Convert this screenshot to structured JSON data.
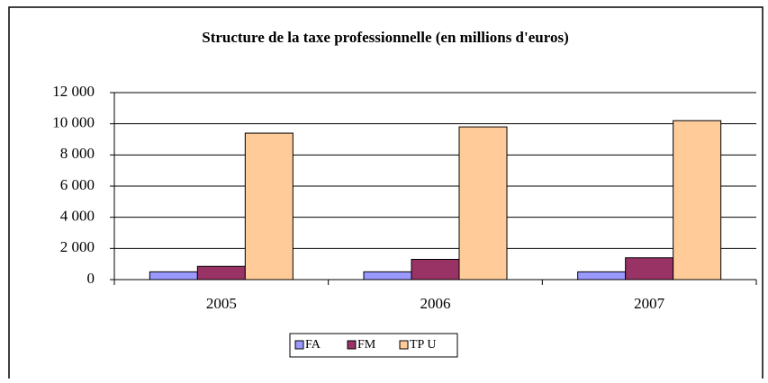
{
  "chart_data": {
    "type": "bar",
    "title": "Structure de la taxe professionnelle (en millions d'euros)",
    "categories": [
      "2005",
      "2006",
      "2007"
    ],
    "series": [
      {
        "name": "FA",
        "color": "#9999ff",
        "values": [
          500,
          500,
          500
        ]
      },
      {
        "name": "FM",
        "color": "#993366",
        "values": [
          850,
          1300,
          1400
        ]
      },
      {
        "name": "TP U",
        "color": "#ffcc99",
        "values": [
          9400,
          9800,
          10200
        ]
      }
    ],
    "ylim": [
      0,
      12000
    ],
    "yticks": [
      0,
      {
        "value": 2000,
        "label": "2 000"
      },
      {
        "value": 4000,
        "label": "4 000"
      },
      {
        "value": 6000,
        "label": "6 000"
      },
      {
        "value": 8000,
        "label": "8 000"
      },
      {
        "value": 10000,
        "label": "10 000"
      },
      {
        "value": 12000,
        "label": "12 000"
      }
    ],
    "grid": true,
    "legend": "bottom"
  }
}
